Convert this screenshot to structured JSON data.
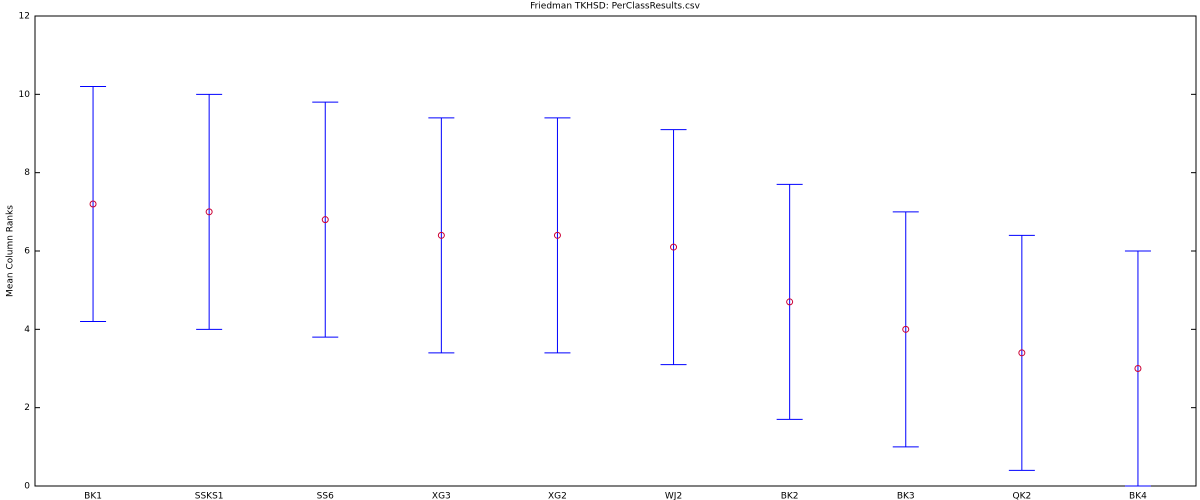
{
  "chart_data": {
    "type": "errorbar",
    "title": "Friedman TKHSD: PerClassResults.csv",
    "y_label": "Mean Column Ranks",
    "categories": [
      "BK1",
      "SSKS1",
      "SS6",
      "XG3",
      "XG2",
      "WJ2",
      "BK2",
      "BK3",
      "QK2",
      "BK4"
    ],
    "values": [
      7.2,
      7.0,
      6.8,
      6.4,
      6.4,
      6.1,
      4.7,
      4.0,
      3.4,
      3.0
    ],
    "errors": [
      3.0,
      3.0,
      3.0,
      3.0,
      3.0,
      3.0,
      3.0,
      3.0,
      3.0,
      3.0
    ],
    "color": "#0000ff",
    "marker_color": "#cc0033",
    "ylim": [
      0,
      12
    ],
    "yticks": [
      0,
      2,
      4,
      6,
      8,
      10,
      12
    ],
    "grid": false
  }
}
